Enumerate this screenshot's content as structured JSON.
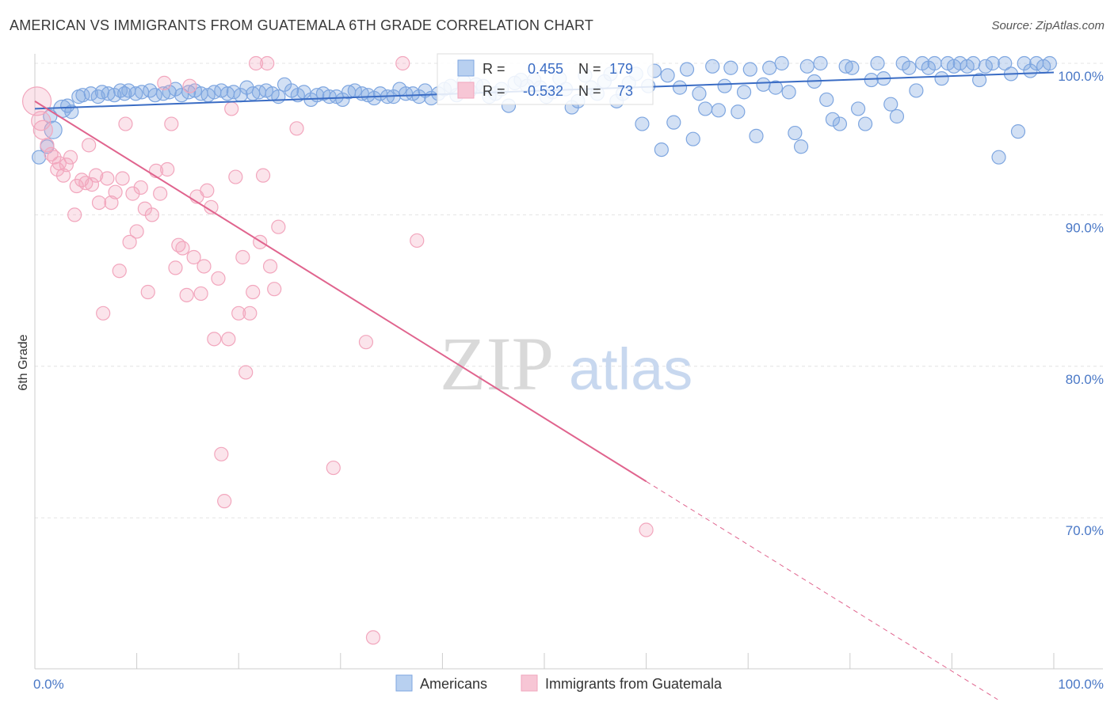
{
  "title": "AMERICAN VS IMMIGRANTS FROM GUATEMALA 6TH GRADE CORRELATION CHART",
  "source": "Source: ZipAtlas.com",
  "watermark": {
    "zip": "ZIP",
    "atlas": "atlas"
  },
  "chart_data": {
    "type": "scatter",
    "xlabel": "",
    "ylabel": "6th Grade",
    "xlim": [
      0,
      100
    ],
    "ylim": [
      61,
      103
    ],
    "x_tick_labels": [
      "0.0%",
      "100.0%"
    ],
    "y_ticks": [
      70,
      80,
      90,
      100
    ],
    "y_tick_labels": [
      "70.0%",
      "80.0%",
      "90.0%",
      "100.0%"
    ],
    "grid": "horizontal dashed",
    "legend_position": "bottom-center",
    "stats": [
      {
        "r_label": "R =",
        "r": "0.455",
        "n_label": "N =",
        "n": "179"
      },
      {
        "r_label": "R =",
        "r": "-0.532",
        "n_label": "N =",
        "n": "73"
      }
    ],
    "series": [
      {
        "name": "Americans",
        "color": "#7ea6e0",
        "line_color": "#3a6cc4",
        "trend": {
          "x": [
            0,
            100
          ],
          "y": [
            97.0,
            99.4
          ]
        },
        "points": [
          [
            0.4,
            93.8
          ],
          [
            1.2,
            94.5
          ],
          [
            1.5,
            96.5
          ],
          [
            1.8,
            95.6
          ],
          [
            2.7,
            97.0
          ],
          [
            3.2,
            97.2
          ],
          [
            3.6,
            96.8
          ],
          [
            4.3,
            97.8
          ],
          [
            4.7,
            97.9
          ],
          [
            5.5,
            98.0
          ],
          [
            6.2,
            97.8
          ],
          [
            6.6,
            98.1
          ],
          [
            7.2,
            98.0
          ],
          [
            7.8,
            97.9
          ],
          [
            8.4,
            98.2
          ],
          [
            8.8,
            98.0
          ],
          [
            9.2,
            98.2
          ],
          [
            9.9,
            98.0
          ],
          [
            10.5,
            98.1
          ],
          [
            11.3,
            98.2
          ],
          [
            11.8,
            97.9
          ],
          [
            12.6,
            98.0
          ],
          [
            13.2,
            98.1
          ],
          [
            13.8,
            98.3
          ],
          [
            14.4,
            97.9
          ],
          [
            15.1,
            98.1
          ],
          [
            15.7,
            98.2
          ],
          [
            16.3,
            98.0
          ],
          [
            17.0,
            97.9
          ],
          [
            17.6,
            98.1
          ],
          [
            18.3,
            98.2
          ],
          [
            18.9,
            98.0
          ],
          [
            19.5,
            98.1
          ],
          [
            20.2,
            97.9
          ],
          [
            20.8,
            98.4
          ],
          [
            21.4,
            98.0
          ],
          [
            22.0,
            98.1
          ],
          [
            22.7,
            98.2
          ],
          [
            23.3,
            98.0
          ],
          [
            23.9,
            97.8
          ],
          [
            24.5,
            98.6
          ],
          [
            25.2,
            98.2
          ],
          [
            25.8,
            97.9
          ],
          [
            26.4,
            98.1
          ],
          [
            27.1,
            97.6
          ],
          [
            27.7,
            97.9
          ],
          [
            28.3,
            98.0
          ],
          [
            28.9,
            97.8
          ],
          [
            29.6,
            97.8
          ],
          [
            30.2,
            97.6
          ],
          [
            30.8,
            98.1
          ],
          [
            31.4,
            98.2
          ],
          [
            32.1,
            98.0
          ],
          [
            32.7,
            97.9
          ],
          [
            33.3,
            97.7
          ],
          [
            33.9,
            98.0
          ],
          [
            34.6,
            97.8
          ],
          [
            35.2,
            97.8
          ],
          [
            35.8,
            98.3
          ],
          [
            36.4,
            98.0
          ],
          [
            37.1,
            98.0
          ],
          [
            37.7,
            97.8
          ],
          [
            38.3,
            98.2
          ],
          [
            38.9,
            97.7
          ],
          [
            39.6,
            98.0
          ],
          [
            40.2,
            98.3
          ],
          [
            40.8,
            98.5
          ],
          [
            41.4,
            97.9
          ],
          [
            42.1,
            98.8
          ],
          [
            42.7,
            98.2
          ],
          [
            43.3,
            98.6
          ],
          [
            44.0,
            98.5
          ],
          [
            44.6,
            97.8
          ],
          [
            45.2,
            98.0
          ],
          [
            45.8,
            98.3
          ],
          [
            46.5,
            97.2
          ],
          [
            47.1,
            98.7
          ],
          [
            47.7,
            98.9
          ],
          [
            48.3,
            98.5
          ],
          [
            49.0,
            98.9
          ],
          [
            49.6,
            98.4
          ],
          [
            50.2,
            97.8
          ],
          [
            50.8,
            98.1
          ],
          [
            51.5,
            99.0
          ],
          [
            52.1,
            98.3
          ],
          [
            52.7,
            97.1
          ],
          [
            53.3,
            97.5
          ],
          [
            54.0,
            99.2
          ],
          [
            54.6,
            98.4
          ],
          [
            55.2,
            98.0
          ],
          [
            55.9,
            98.8
          ],
          [
            56.5,
            99.3
          ],
          [
            57.1,
            97.5
          ],
          [
            57.7,
            98.0
          ],
          [
            58.3,
            98.7
          ],
          [
            59.0,
            99.3
          ],
          [
            59.6,
            96.0
          ],
          [
            60.2,
            98.5
          ],
          [
            60.8,
            99.5
          ],
          [
            61.5,
            94.3
          ],
          [
            62.1,
            99.2
          ],
          [
            62.7,
            96.1
          ],
          [
            63.3,
            98.4
          ],
          [
            64.0,
            99.6
          ],
          [
            64.6,
            95.0
          ],
          [
            65.2,
            98.0
          ],
          [
            65.8,
            97.0
          ],
          [
            66.5,
            99.8
          ],
          [
            67.1,
            96.9
          ],
          [
            67.7,
            98.5
          ],
          [
            68.3,
            99.7
          ],
          [
            69.0,
            96.8
          ],
          [
            69.6,
            98.1
          ],
          [
            70.2,
            99.6
          ],
          [
            70.8,
            95.2
          ],
          [
            71.5,
            98.6
          ],
          [
            72.1,
            99.7
          ],
          [
            72.7,
            98.4
          ],
          [
            73.3,
            100.0
          ],
          [
            74.0,
            98.1
          ],
          [
            74.6,
            95.4
          ],
          [
            75.2,
            94.5
          ],
          [
            75.8,
            99.8
          ],
          [
            76.5,
            98.8
          ],
          [
            77.1,
            100.0
          ],
          [
            77.7,
            97.6
          ],
          [
            78.3,
            96.3
          ],
          [
            79.0,
            96.0
          ],
          [
            79.6,
            99.8
          ],
          [
            80.2,
            99.7
          ],
          [
            80.8,
            97.0
          ],
          [
            81.5,
            96.0
          ],
          [
            82.1,
            98.9
          ],
          [
            82.7,
            100.0
          ],
          [
            83.3,
            99.0
          ],
          [
            84.0,
            97.3
          ],
          [
            84.6,
            96.5
          ],
          [
            85.2,
            100.0
          ],
          [
            85.8,
            99.7
          ],
          [
            86.5,
            98.2
          ],
          [
            87.1,
            100.0
          ],
          [
            87.7,
            99.7
          ],
          [
            88.3,
            100.0
          ],
          [
            89.0,
            99.0
          ],
          [
            89.6,
            100.0
          ],
          [
            90.2,
            99.8
          ],
          [
            90.8,
            100.0
          ],
          [
            91.5,
            99.8
          ],
          [
            92.1,
            100.0
          ],
          [
            92.7,
            98.9
          ],
          [
            93.3,
            99.8
          ],
          [
            94.0,
            100.0
          ],
          [
            94.6,
            93.8
          ],
          [
            95.2,
            100.0
          ],
          [
            95.8,
            99.3
          ],
          [
            96.5,
            95.5
          ],
          [
            97.1,
            100.0
          ],
          [
            97.7,
            99.5
          ],
          [
            98.3,
            100.0
          ],
          [
            99.0,
            99.8
          ],
          [
            99.6,
            100.0
          ]
        ]
      },
      {
        "name": "Immigrants from Guatemala",
        "color": "#f2a6bd",
        "line_color": "#e0648e",
        "trend": {
          "x": [
            0,
            60
          ],
          "y": [
            97.5,
            72.4
          ]
        },
        "trend_dashed": {
          "x": [
            60,
            94.5
          ],
          "y": [
            72.4,
            58.0
          ]
        },
        "points": [
          [
            0.2,
            97.5
          ],
          [
            0.6,
            96.2
          ],
          [
            0.8,
            95.6
          ],
          [
            1.2,
            94.6
          ],
          [
            1.6,
            94.0
          ],
          [
            1.9,
            93.8
          ],
          [
            2.2,
            93.0
          ],
          [
            2.4,
            93.4
          ],
          [
            2.8,
            92.6
          ],
          [
            3.1,
            93.3
          ],
          [
            3.5,
            93.8
          ],
          [
            3.9,
            90.0
          ],
          [
            4.1,
            91.9
          ],
          [
            4.6,
            92.3
          ],
          [
            5.0,
            92.1
          ],
          [
            5.3,
            94.6
          ],
          [
            5.6,
            92.0
          ],
          [
            6.0,
            92.6
          ],
          [
            6.3,
            90.8
          ],
          [
            6.7,
            83.5
          ],
          [
            7.1,
            92.4
          ],
          [
            7.5,
            90.8
          ],
          [
            7.9,
            91.5
          ],
          [
            8.3,
            86.3
          ],
          [
            8.6,
            92.4
          ],
          [
            8.9,
            96.0
          ],
          [
            9.3,
            88.2
          ],
          [
            9.6,
            91.4
          ],
          [
            10.0,
            88.9
          ],
          [
            10.4,
            91.8
          ],
          [
            10.8,
            90.4
          ],
          [
            11.1,
            84.9
          ],
          [
            11.5,
            90.0
          ],
          [
            11.9,
            92.9
          ],
          [
            12.3,
            91.4
          ],
          [
            12.7,
            98.7
          ],
          [
            13.0,
            93.0
          ],
          [
            13.4,
            96.0
          ],
          [
            13.8,
            86.5
          ],
          [
            14.1,
            88.0
          ],
          [
            14.5,
            87.8
          ],
          [
            14.9,
            84.7
          ],
          [
            15.2,
            98.5
          ],
          [
            15.6,
            87.2
          ],
          [
            15.9,
            91.2
          ],
          [
            16.3,
            84.8
          ],
          [
            16.6,
            86.6
          ],
          [
            16.9,
            91.6
          ],
          [
            17.3,
            90.5
          ],
          [
            17.6,
            81.8
          ],
          [
            18.0,
            85.8
          ],
          [
            18.3,
            74.2
          ],
          [
            18.6,
            71.1
          ],
          [
            19.0,
            81.8
          ],
          [
            19.3,
            97.0
          ],
          [
            19.7,
            92.5
          ],
          [
            20.0,
            83.5
          ],
          [
            20.4,
            87.2
          ],
          [
            20.7,
            79.6
          ],
          [
            21.1,
            83.5
          ],
          [
            21.4,
            84.9
          ],
          [
            21.7,
            100.0
          ],
          [
            22.1,
            88.2
          ],
          [
            22.4,
            92.6
          ],
          [
            22.8,
            100.0
          ],
          [
            23.1,
            86.6
          ],
          [
            23.5,
            85.1
          ],
          [
            23.9,
            89.2
          ],
          [
            25.7,
            95.7
          ],
          [
            29.3,
            73.3
          ],
          [
            32.5,
            81.6
          ],
          [
            33.2,
            62.1
          ],
          [
            36.1,
            100.0
          ],
          [
            37.5,
            88.3
          ],
          [
            60.0,
            69.2
          ]
        ]
      }
    ]
  }
}
